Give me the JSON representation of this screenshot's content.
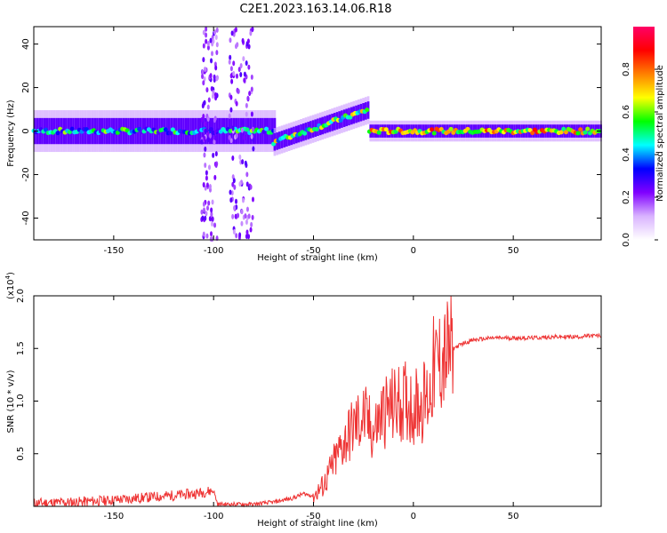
{
  "title": "C2E1.2023.163.14.06.R18",
  "chart_data": [
    {
      "type": "heatmap",
      "xlabel": "Height of straight line (km)",
      "ylabel": "Frequency (Hz)",
      "xlim": [
        -190,
        94
      ],
      "ylim": [
        -50,
        48
      ],
      "xticks": [
        -150,
        -100,
        -50,
        0,
        50
      ],
      "yticks": [
        -40,
        -20,
        0,
        20,
        40
      ],
      "colorbar": {
        "label": "Normalized spectral amplitude",
        "range": [
          0.0,
          1.0
        ],
        "ticks": [
          0.0,
          0.2,
          0.4,
          0.6,
          0.8
        ],
        "colors": [
          "#ffffff",
          "#d9b3ff",
          "#8000ff",
          "#0000ff",
          "#00ffff",
          "#00ff00",
          "#ffff00",
          "#ff8000",
          "#ff0000",
          "#ff0066"
        ]
      },
      "description_series": [
        {
          "x_range": [
            -190,
            -70
          ],
          "center_hz": 0,
          "halfwidth_hz": 6,
          "level": 0.45
        },
        {
          "x_range": [
            -70,
            -22
          ],
          "center_hz_start": -5,
          "center_hz_end": 10,
          "halfwidth_hz": 4,
          "level": 0.55
        },
        {
          "x_range": [
            -22,
            94
          ],
          "center_hz": 0,
          "halfwidth_hz": 3,
          "level": 0.7
        }
      ]
    },
    {
      "type": "line",
      "xlabel": "Height of straight line (km)",
      "ylabel": "SNR (10 * v/v)",
      "yscale_label": "(x10",
      "yscale_exp": "4",
      "xlim": [
        -190,
        94
      ],
      "ylim": [
        0,
        2.0
      ],
      "xticks": [
        -150,
        -100,
        -50,
        0,
        50
      ],
      "yticks": [
        0.5,
        1.0,
        1.5,
        2.0
      ],
      "color": "#ee3333",
      "x": [
        -190,
        -170,
        -150,
        -130,
        -110,
        -100,
        -98,
        -90,
        -80,
        -70,
        -60,
        -55,
        -50,
        -45,
        -40,
        -35,
        -30,
        -25,
        -20,
        -15,
        -10,
        -5,
        0,
        5,
        8,
        10,
        12,
        15,
        20,
        25,
        30,
        35,
        40,
        45,
        50,
        60,
        70,
        80,
        90,
        94
      ],
      "y": [
        0.03,
        0.04,
        0.06,
        0.09,
        0.12,
        0.15,
        0.02,
        0.02,
        0.02,
        0.04,
        0.08,
        0.12,
        0.1,
        0.2,
        0.4,
        0.6,
        0.75,
        0.85,
        0.7,
        0.9,
        0.95,
        1.0,
        0.95,
        1.0,
        1.05,
        1.3,
        1.35,
        1.4,
        1.5,
        1.55,
        1.58,
        1.59,
        1.6,
        1.6,
        1.6,
        1.6,
        1.61,
        1.61,
        1.62,
        1.62
      ]
    }
  ]
}
